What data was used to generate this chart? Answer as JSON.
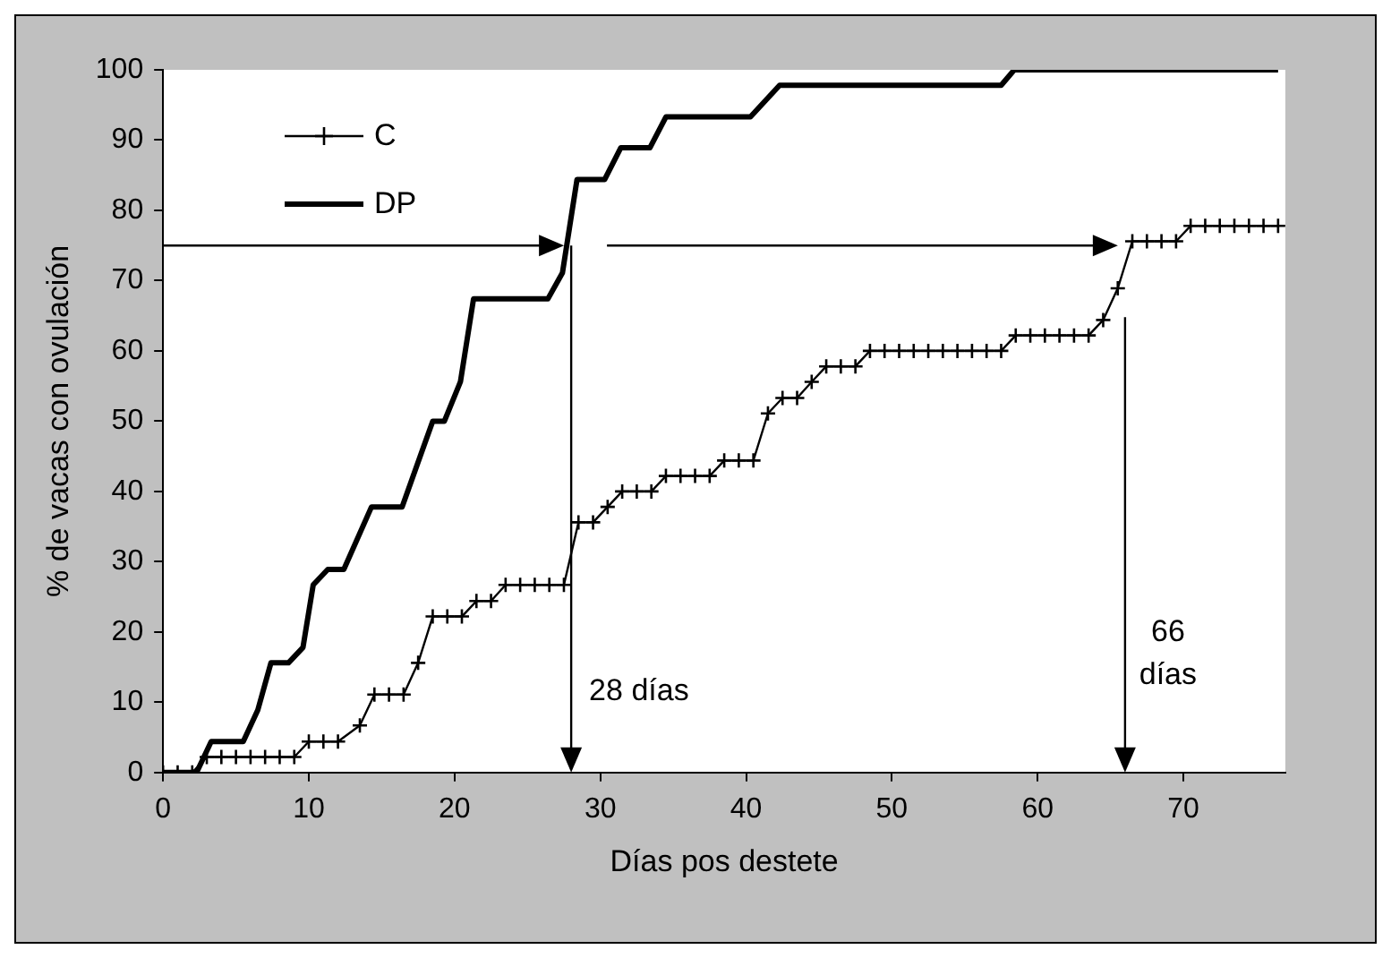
{
  "chart_data": {
    "type": "line",
    "xlabel": "Días pos destete",
    "ylabel": "% de vacas con ovulación",
    "series": [
      {
        "name": "C",
        "color": "#000000",
        "marker": "cross",
        "x": [
          0,
          1,
          2,
          3,
          4,
          5,
          6,
          7,
          8,
          9,
          10,
          11,
          12,
          13.5,
          14.5,
          15.5,
          16.5,
          17.5,
          18.5,
          19.5,
          20.5,
          21.5,
          22.5,
          23.5,
          24.5,
          25.5,
          26.5,
          27.5,
          28.5,
          29.5,
          30.5,
          31.5,
          32.5,
          33.5,
          34.5,
          35.5,
          36.5,
          37.5,
          38.5,
          39.5,
          40.5,
          41.5,
          42.5,
          43.5,
          44.5,
          45.5,
          46.5,
          47.5,
          48.5,
          49.5,
          50.5,
          51.5,
          52.5,
          53.5,
          54.5,
          55.5,
          56.5,
          57.5,
          58.5,
          59.5,
          60.5,
          61.5,
          62.5,
          63.5,
          64.5,
          65.5,
          66.5,
          67.5,
          68.5,
          69.5,
          70.5,
          71.5,
          72.5,
          73.5,
          74.5,
          75.5,
          76.5
        ],
        "values": [
          0,
          0,
          0,
          2.2,
          2.2,
          2.2,
          2.2,
          2.2,
          2.2,
          2.2,
          4.4,
          4.4,
          4.4,
          6.7,
          11.1,
          11.1,
          11.1,
          15.6,
          22.2,
          22.2,
          22.2,
          24.4,
          24.4,
          26.7,
          26.7,
          26.7,
          26.7,
          26.7,
          35.6,
          35.6,
          37.8,
          40,
          40,
          40,
          42.2,
          42.2,
          42.2,
          42.2,
          44.4,
          44.4,
          44.4,
          51.1,
          53.3,
          53.3,
          55.6,
          57.8,
          57.8,
          57.8,
          60,
          60,
          60,
          60,
          60,
          60,
          60,
          60,
          60,
          60,
          62.2,
          62.2,
          62.2,
          62.2,
          62.2,
          62.2,
          64.4,
          68.9,
          75.6,
          75.6,
          75.6,
          75.6,
          77.8,
          77.8,
          77.8,
          77.8,
          77.8,
          77.8,
          77.8
        ]
      },
      {
        "name": "DP",
        "color": "#000000",
        "marker": "none",
        "x": [
          0,
          2.3,
          3.3,
          5.5,
          6.5,
          7.4,
          8.6,
          9.6,
          10.3,
          11.3,
          12.4,
          14.3,
          16.4,
          18.5,
          19.3,
          20.4,
          21.3,
          26.4,
          27.4,
          28.4,
          30.3,
          31.4,
          33.4,
          34.5,
          40.3,
          42.3,
          57.5,
          58.4,
          76.5
        ],
        "values": [
          0,
          0,
          4.4,
          4.4,
          8.9,
          15.6,
          15.6,
          17.8,
          26.7,
          28.9,
          28.9,
          37.8,
          37.8,
          50,
          50,
          55.6,
          67.4,
          67.4,
          71.1,
          84.4,
          84.4,
          88.9,
          88.9,
          93.3,
          93.3,
          97.8,
          97.8,
          100,
          100
        ]
      }
    ],
    "xlim": [
      0,
      77
    ],
    "xticks": [
      0,
      10,
      20,
      30,
      40,
      50,
      60,
      70
    ],
    "ylim": [
      0,
      100
    ],
    "yticks": [
      0,
      10,
      20,
      30,
      40,
      50,
      60,
      70,
      80,
      90,
      100
    ],
    "grid": false,
    "legend": "top left",
    "ref_lines": [
      {
        "axis": "y",
        "value": 75
      },
      {
        "axis": "x",
        "value": 28,
        "label": "28 días"
      },
      {
        "axis": "x",
        "value": 66,
        "label": "66 días"
      }
    ]
  }
}
